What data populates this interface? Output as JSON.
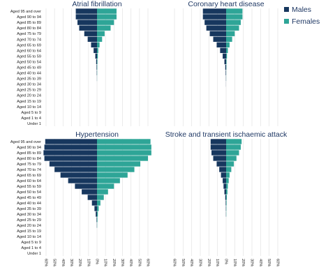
{
  "legend": {
    "items": [
      {
        "name": "Males",
        "color": "#17375e"
      },
      {
        "name": "Females",
        "color": "#2ea597"
      }
    ]
  },
  "chart_data": [
    {
      "type": "bar",
      "title": "Atrial fibrillation",
      "categories": [
        "Aged 95 and over",
        "Aged 90 to 94",
        "Aged 85 to 89",
        "Aged 80 to 84",
        "Aged 75 to 79",
        "Aged 70 to 74",
        "Aged 65 to 69",
        "Aged 60 to 64",
        "Aged 55 to 59",
        "Aged 50 to 54",
        "Aged 45 to 49",
        "Aged 40 to 44",
        "Aged 35 to 39",
        "Aged 30 to 34",
        "Aged 25 to 29",
        "Aged 20 to 24",
        "Aged 15 to 19",
        "Aged 10 to 14",
        "Aged 5 to 9",
        "Aged 1 to 4",
        "Under 1"
      ],
      "series": [
        {
          "name": "Males",
          "values": [
            25,
            25,
            23,
            21,
            15,
            11,
            7,
            4,
            2,
            1,
            0.5,
            0.3,
            0.1,
            0,
            0,
            0,
            0,
            0,
            0,
            0,
            0
          ]
        },
        {
          "name": "Females",
          "values": [
            23,
            23,
            20,
            16,
            9,
            6,
            3,
            1.5,
            1,
            0.5,
            0.3,
            0.2,
            0.1,
            0,
            0,
            0,
            0,
            0,
            0,
            0,
            0
          ]
        }
      ],
      "xlim": [
        -60,
        60
      ],
      "ticks": [
        "60%",
        "50%",
        "40%",
        "30%",
        "20%",
        "10%",
        "0%",
        "10%",
        "20%",
        "30%",
        "40%",
        "50%",
        "60%"
      ],
      "legend_position": "top-right"
    },
    {
      "type": "bar",
      "title": "Coronary heart disease",
      "categories": [
        "Aged 95 and over",
        "Aged 90 to 94",
        "Aged 85 to 89",
        "Aged 80 to 84",
        "Aged 75 to 79",
        "Aged 70 to 74",
        "Aged 65 to 69",
        "Aged 60 to 64",
        "Aged 55 to 59",
        "Aged 50 to 54",
        "Aged 45 to 49",
        "Aged 40 to 44",
        "Aged 35 to 39",
        "Aged 30 to 34",
        "Aged 25 to 29",
        "Aged 20 to 24",
        "Aged 15 to 19",
        "Aged 10 to 14",
        "Aged 5 to 9",
        "Aged 1 to 4",
        "Under 1"
      ],
      "series": [
        {
          "name": "Males",
          "values": [
            27,
            27,
            25,
            23,
            19,
            15,
            11,
            7,
            4,
            2,
            1,
            0.5,
            0.2,
            0.1,
            0,
            0,
            0,
            0,
            0,
            0,
            0
          ]
        },
        {
          "name": "Females",
          "values": [
            19,
            19,
            17,
            15,
            10,
            7,
            4,
            2,
            1,
            0.5,
            0.3,
            0.1,
            0.1,
            0,
            0,
            0,
            0,
            0,
            0,
            0,
            0
          ]
        }
      ],
      "xlim": [
        -60,
        60
      ],
      "ticks": [
        "60%",
        "50%",
        "40%",
        "30%",
        "20%",
        "10%",
        "0%",
        "10%",
        "20%",
        "30%",
        "40%",
        "50%",
        "60%"
      ]
    },
    {
      "type": "bar",
      "title": "Hypertension",
      "categories": [
        "Aged 95 and over",
        "Aged 90 to 94",
        "Aged 85 to 89",
        "Aged 80 to 84",
        "Aged 75 to 79",
        "Aged 70 to 74",
        "Aged 65 to 69",
        "Aged 60 to 64",
        "Aged 55 to 59",
        "Aged 50 to 54",
        "Aged 45 to 49",
        "Aged 40 to 44",
        "Aged 35 to 39",
        "Aged 30 to 34",
        "Aged 25 to 29",
        "Aged 20 to 24",
        "Aged 15 to 19",
        "Aged 10 to 14",
        "Aged 5 to 9",
        "Aged 1 to 4",
        "Under 1"
      ],
      "series": [
        {
          "name": "Males",
          "values": [
            61,
            62,
            63,
            62,
            56,
            50,
            43,
            34,
            26,
            18,
            11,
            6,
            3,
            1.5,
            0.5,
            0.2,
            0,
            0,
            0,
            0,
            0
          ]
        },
        {
          "name": "Females",
          "values": [
            63,
            64,
            64,
            60,
            51,
            44,
            36,
            27,
            20,
            13,
            8,
            4,
            2,
            1,
            0.5,
            0.2,
            0,
            0,
            0,
            0,
            0
          ]
        }
      ],
      "xlim": [
        -60,
        60
      ],
      "ticks": [
        "60%",
        "50%",
        "40%",
        "30%",
        "20%",
        "10%",
        "0%",
        "10%",
        "20%",
        "30%",
        "40%",
        "50%",
        "60%"
      ]
    },
    {
      "type": "bar",
      "title": "Stroke and transient ischaemic attack",
      "categories": [
        "Aged 95 and over",
        "Aged 90 to 94",
        "Aged 85 to 89",
        "Aged 80 to 84",
        "Aged 75 to 79",
        "Aged 70 to 74",
        "Aged 65 to 69",
        "Aged 60 to 64",
        "Aged 55 to 59",
        "Aged 50 to 54",
        "Aged 45 to 49",
        "Aged 40 to 44",
        "Aged 35 to 39",
        "Aged 30 to 34",
        "Aged 25 to 29",
        "Aged 20 to 24",
        "Aged 15 to 19",
        "Aged 10 to 14",
        "Aged 5 to 9",
        "Aged 1 to 4",
        "Under 1"
      ],
      "series": [
        {
          "name": "Males",
          "values": [
            18,
            18,
            17,
            15,
            11,
            8,
            6,
            4,
            3,
            2,
            1,
            0.5,
            0.3,
            0.2,
            0,
            0,
            0,
            0,
            0,
            0,
            0
          ]
        },
        {
          "name": "Females",
          "values": [
            18,
            17,
            15,
            12,
            9,
            6,
            4,
            3,
            2,
            1.5,
            0.8,
            0.5,
            0.3,
            0.2,
            0,
            0,
            0,
            0,
            0,
            0,
            0
          ]
        }
      ],
      "xlim": [
        -60,
        60
      ],
      "ticks": [
        "60%",
        "50%",
        "40%",
        "30%",
        "20%",
        "10%",
        "0%",
        "10%",
        "20%",
        "30%",
        "40%",
        "50%",
        "60%"
      ]
    }
  ]
}
